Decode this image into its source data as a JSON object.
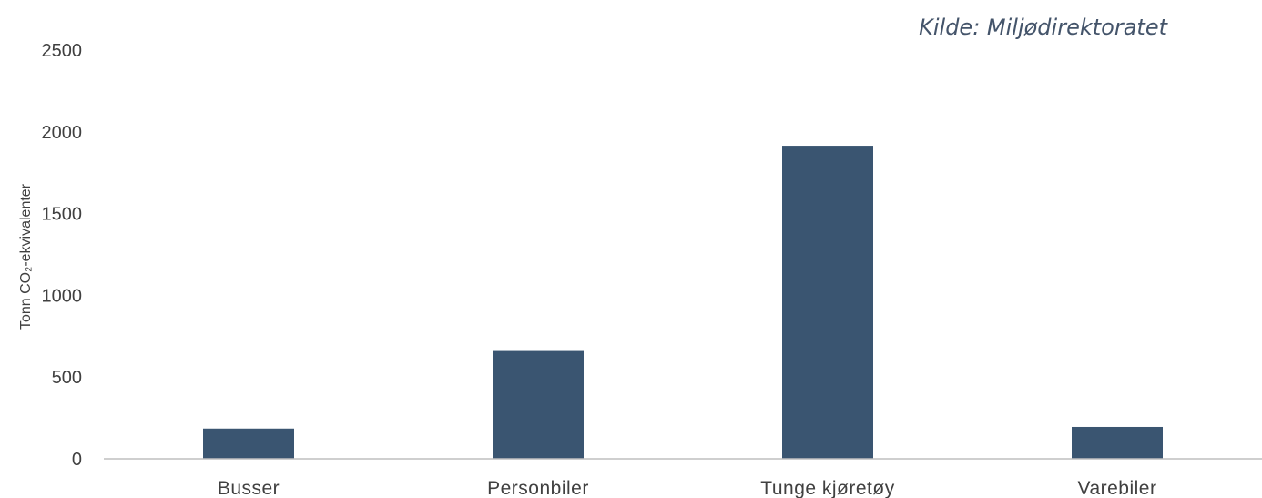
{
  "source": {
    "text": "Kilde: Miljødirektoratet"
  },
  "colors": {
    "bar": "#3a5571",
    "source_text": "#44546a",
    "axis_line": "#bfbfbf",
    "tick_text": "#404040"
  },
  "chart_data": {
    "type": "bar",
    "title": "",
    "xlabel": "",
    "ylabel": "Tonn CO₂-ekvivalenter",
    "categories": [
      "Busser",
      "Personbiler",
      "Tunge kjøretøy",
      "Varebiler"
    ],
    "values": [
      185,
      665,
      1915,
      195
    ],
    "ylim": [
      0,
      2500
    ],
    "yticks": [
      "0",
      "500",
      "1000",
      "1500",
      "2000",
      "2500"
    ],
    "grid": false,
    "legend": "none"
  }
}
